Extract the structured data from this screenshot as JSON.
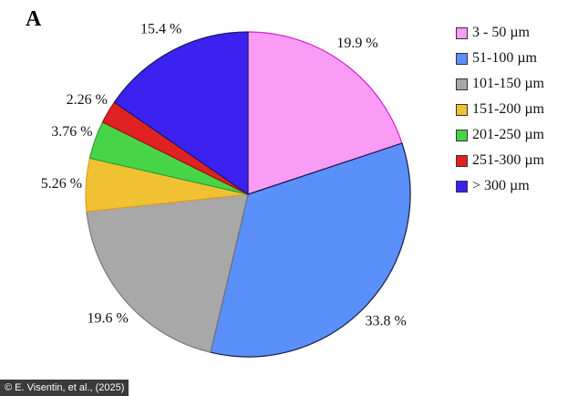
{
  "panel_label": "A",
  "credit": "© E. Visentin, et al., (2025)",
  "chart_data": {
    "type": "pie",
    "start": "top",
    "direction": "clockwise",
    "categories": [
      "3 - 50 µm",
      "51-100 µm",
      "101-150 µm",
      "151-200 µm",
      "201-250 µm",
      "251-300 µm",
      "> 300 µm"
    ],
    "values": [
      19.9,
      33.8,
      19.6,
      5.26,
      3.76,
      2.26,
      15.4
    ],
    "labels": [
      "19.9 %",
      "33.8 %",
      "19.6 %",
      "5.26 %",
      "3.76 %",
      "2.26 %",
      "15.4 %"
    ],
    "colors": [
      "#f99cf5",
      "#5b8ff9",
      "#a8a8a8",
      "#f0c233",
      "#48d448",
      "#e02222",
      "#3b22f0"
    ],
    "edge_colors": [
      "#d81fd0",
      "#1a1a40",
      "#777777",
      "#e0a020",
      "#30a030",
      "#a01010",
      "#1a1a60"
    ],
    "legend_position": "right"
  }
}
